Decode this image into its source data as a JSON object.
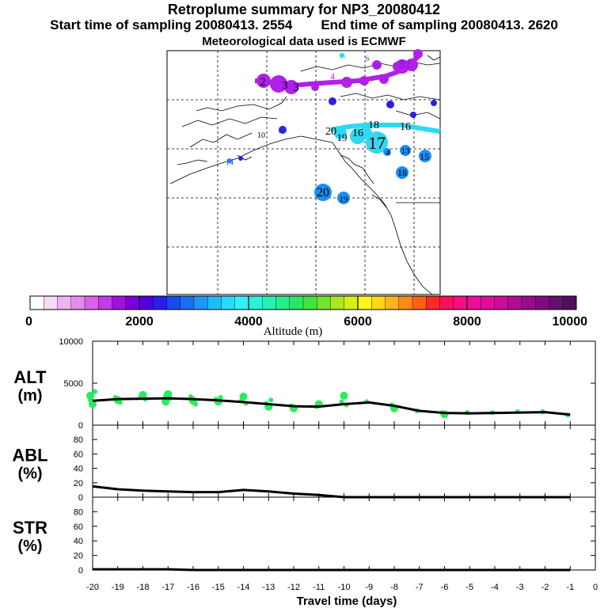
{
  "title": "Retroplume summary for NP3_20080412",
  "subtitle_start": "Start time of sampling 20080413.  2554",
  "subtitle_end": "End time of sampling 20080413.  2620",
  "subtitle_met": "Meteorological data used is ECMWF",
  "colorbar": {
    "label": "Altitude (m)",
    "ticks": [
      "0",
      "2000",
      "4000",
      "6000",
      "8000",
      "10000"
    ],
    "colors": [
      "#ffffff",
      "#f6d8f8",
      "#eeb4f2",
      "#e38ceb",
      "#d564e6",
      "#c13ce2",
      "#a010e0",
      "#7a00e0",
      "#5000e0",
      "#2a1ee8",
      "#1848f0",
      "#1a6ef4",
      "#1e96f6",
      "#20bcf8",
      "#26dcfa",
      "#2ef2fa",
      "#28f4d8",
      "#26f2b2",
      "#26ee8a",
      "#28e862",
      "#40e43c",
      "#74e426",
      "#a8ea1e",
      "#d6f01c",
      "#fcf81a",
      "#fcd818",
      "#fcb418",
      "#fc8c18",
      "#fc6018",
      "#f82a26",
      "#f8105a",
      "#f80c82",
      "#f00c9a",
      "#e00c9a",
      "#cc0c98",
      "#b20c90",
      "#980c88",
      "#7e0c80",
      "#661070",
      "#4e105c"
    ]
  },
  "map": {
    "labels": [
      {
        "t": "16",
        "c": "#28d8f0"
      },
      {
        "t": "6",
        "c": "#a010e0"
      },
      {
        "t": "6",
        "c": "#a010e0"
      },
      {
        "t": "5",
        "c": "#a010e0"
      },
      {
        "t": "32",
        "c": "#a010e0"
      },
      {
        "t": "4",
        "c": "#a010e0"
      },
      {
        "t": "3",
        "c": "#000"
      },
      {
        "t": "3",
        "c": "#000"
      },
      {
        "t": "2",
        "c": "#000"
      },
      {
        "t": "10",
        "c": "#000"
      },
      {
        "t": "20",
        "c": "#1848f0"
      },
      {
        "t": "14",
        "c": "#1848f0"
      },
      {
        "t": "20",
        "c": "#000"
      },
      {
        "t": "19",
        "c": "#000"
      },
      {
        "t": "16",
        "c": "#000"
      },
      {
        "t": "18",
        "c": "#000"
      },
      {
        "t": "16",
        "c": "#000"
      },
      {
        "t": "17",
        "c": "#000"
      },
      {
        "t": "4",
        "c": "#000"
      },
      {
        "t": "13",
        "c": "#000"
      },
      {
        "t": "15",
        "c": "#000"
      },
      {
        "t": "18",
        "c": "#000"
      },
      {
        "t": "20",
        "c": "#000"
      },
      {
        "t": "19",
        "c": "#000"
      }
    ]
  },
  "chart_data": {
    "type": "line",
    "xlabel": "Travel time (days)",
    "x": [
      -20,
      -19,
      -18,
      -17,
      -16,
      -15,
      -14,
      -13,
      -12,
      -11,
      -10,
      -9,
      -8,
      -7,
      -6,
      -5,
      -4,
      -3,
      -2,
      -1
    ],
    "xticks": [
      "-20",
      "-19",
      "-18",
      "-17",
      "-16",
      "-15",
      "-14",
      "-13",
      "-12",
      "-11",
      "-10",
      "-9",
      "-8",
      "-7",
      "-6",
      "-5",
      "-4",
      "-3",
      "-2",
      "-1",
      "0"
    ],
    "xlim": [
      -20,
      0
    ],
    "panels": [
      {
        "name": "ALT",
        "ylabel_line1": "ALT",
        "ylabel_line2": "(m)",
        "ylim": [
          0,
          10000
        ],
        "yticks": [
          "0",
          "5000",
          "10000"
        ],
        "values": [
          2900,
          3100,
          3150,
          3200,
          3100,
          2950,
          2750,
          2500,
          2250,
          2200,
          2500,
          2700,
          2300,
          1700,
          1450,
          1400,
          1450,
          1500,
          1550,
          1250
        ],
        "scatter": [
          [
            3000,
            2500,
            4000,
            3500
          ],
          [
            3300,
            3000,
            2700
          ],
          [
            3400,
            3600,
            3100
          ],
          [
            3500,
            3700,
            3200,
            2800
          ],
          [
            3400,
            2900,
            2500
          ],
          [
            3100,
            2800,
            3300
          ],
          [
            2900,
            3400,
            2600
          ],
          [
            2600,
            2200,
            3000
          ],
          [
            2300,
            2000
          ],
          [
            2200,
            2500
          ],
          [
            2800,
            3500,
            2400
          ],
          [
            2800
          ],
          [
            2400,
            2000
          ],
          [
            1700
          ],
          [
            1500,
            1300
          ],
          [
            1500
          ],
          [
            1500
          ],
          [
            1600
          ],
          [
            1600
          ],
          [
            1200
          ]
        ]
      },
      {
        "name": "ABL",
        "ylabel_line1": "ABL",
        "ylabel_line2": "(%)",
        "ylim": [
          0,
          100
        ],
        "yticks": [
          "0",
          "20",
          "40",
          "60",
          "80"
        ],
        "values": [
          15,
          11,
          9,
          8,
          7,
          7,
          10,
          8,
          5,
          3,
          0,
          0,
          0,
          0,
          0,
          0,
          0,
          0,
          0,
          0
        ]
      },
      {
        "name": "STR",
        "ylabel_line1": "STR",
        "ylabel_line2": "(%)",
        "ylim": [
          0,
          100
        ],
        "yticks": [
          "0",
          "20",
          "40",
          "60",
          "80"
        ],
        "values": [
          1,
          1,
          1,
          1,
          0,
          0,
          0,
          0,
          0,
          0,
          0,
          0,
          0,
          0,
          0,
          0,
          0,
          0,
          0,
          0
        ]
      }
    ]
  }
}
